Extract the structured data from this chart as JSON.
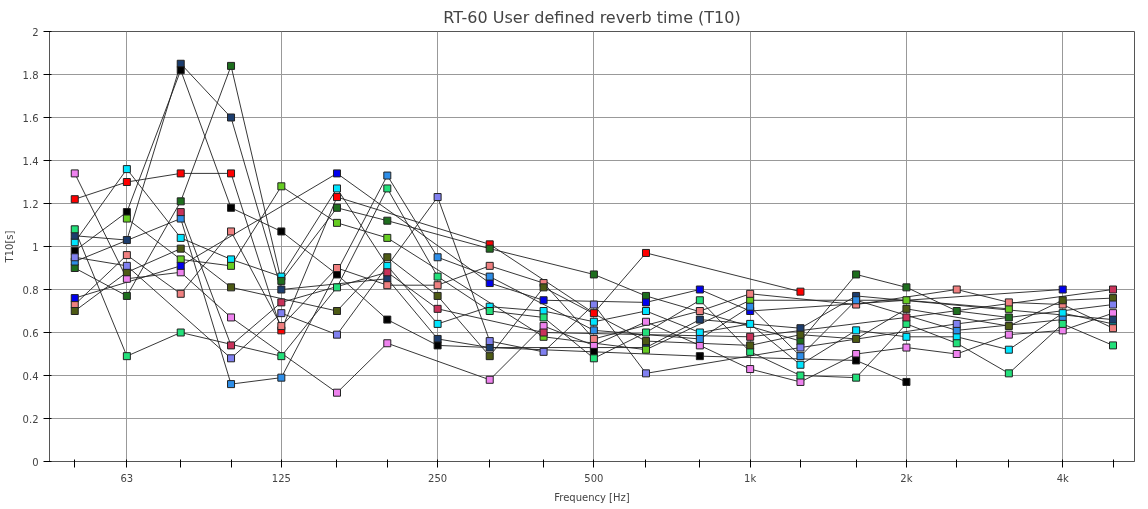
{
  "chart_data": {
    "type": "line",
    "title": "RT-60 User defined reverb time (T10)",
    "xlabel": "Frequency [Hz]",
    "ylabel": "T10[s]",
    "log": "x",
    "marker": "square",
    "line_style": "solid",
    "grid": true,
    "xlim": [
      44.7,
      5500
    ],
    "ylim": [
      0,
      2
    ],
    "xticks": [
      {
        "value": 50,
        "label": null
      },
      {
        "value": 63,
        "label": "63"
      },
      {
        "value": 80,
        "label": null
      },
      {
        "value": 100,
        "label": null
      },
      {
        "value": 125,
        "label": "125"
      },
      {
        "value": 160,
        "label": null
      },
      {
        "value": 200,
        "label": null
      },
      {
        "value": 250,
        "label": "250"
      },
      {
        "value": 315,
        "label": null
      },
      {
        "value": 400,
        "label": null
      },
      {
        "value": 500,
        "label": "500"
      },
      {
        "value": 630,
        "label": null
      },
      {
        "value": 800,
        "label": null
      },
      {
        "value": 1000,
        "label": "1k"
      },
      {
        "value": 1250,
        "label": null
      },
      {
        "value": 1600,
        "label": null
      },
      {
        "value": 2000,
        "label": "2k"
      },
      {
        "value": 2500,
        "label": null
      },
      {
        "value": 3150,
        "label": null
      },
      {
        "value": 4000,
        "label": "4k"
      },
      {
        "value": 5000,
        "label": null
      }
    ],
    "yticks": [
      0,
      0.2,
      0.4,
      0.6,
      0.8,
      1,
      1.2,
      1.4,
      1.6,
      1.8,
      2
    ],
    "series": [
      {
        "color": "#ee82ee",
        "x": [
          50,
          63,
          80,
          100,
          160,
          200,
          315,
          400,
          500,
          630,
          800,
          1000,
          1250,
          1600,
          2000,
          2500,
          3150,
          4000,
          5000
        ],
        "values": [
          1.34,
          0.85,
          0.88,
          0.67,
          0.32,
          0.55,
          0.38,
          0.63,
          0.54,
          0.65,
          0.54,
          0.43,
          0.37,
          0.5,
          0.53,
          0.5,
          0.59,
          0.61,
          0.69
        ]
      },
      {
        "color": "#ff0000",
        "x": [
          50,
          63,
          80,
          100,
          125,
          160,
          315,
          500,
          630,
          1250
        ],
        "values": [
          1.22,
          1.3,
          1.34,
          1.34,
          0.61,
          1.23,
          1.01,
          0.69,
          0.97,
          0.79
        ]
      },
      {
        "color": "#00e5ff",
        "x": [
          50,
          63,
          80,
          100,
          125,
          160,
          200,
          250,
          315,
          400,
          500,
          630,
          800,
          1000,
          1250,
          1600,
          2000,
          2500,
          3150,
          4000,
          5000
        ],
        "values": [
          1.02,
          1.36,
          1.04,
          0.94,
          0.86,
          1.27,
          0.91,
          0.64,
          0.72,
          0.7,
          0.65,
          0.7,
          0.6,
          0.64,
          0.45,
          0.61,
          0.58,
          0.58,
          0.52,
          0.69,
          0.64
        ]
      },
      {
        "color": "#1e6e1e",
        "x": [
          50,
          63,
          80,
          100,
          125,
          160,
          200,
          315,
          500,
          630,
          1250,
          1600,
          2000,
          2500,
          3150
        ],
        "values": [
          0.9,
          0.77,
          1.21,
          1.84,
          0.84,
          1.18,
          1.12,
          0.99,
          0.87,
          0.77,
          0.56,
          0.87,
          0.81,
          0.7,
          0.67
        ]
      },
      {
        "color": "#1c3d6e",
        "x": [
          50,
          63,
          80,
          100,
          125,
          200,
          250,
          315,
          630,
          800,
          1250,
          1600,
          5000
        ],
        "values": [
          1.05,
          1.03,
          1.85,
          1.6,
          0.8,
          0.85,
          0.57,
          0.53,
          0.53,
          0.66,
          0.62,
          0.77,
          0.66
        ]
      },
      {
        "color": "#000000",
        "x": [
          50,
          63,
          80,
          100,
          125,
          160,
          200,
          250,
          500,
          800,
          1600,
          2000
        ],
        "values": [
          0.98,
          1.16,
          1.82,
          1.18,
          1.07,
          0.87,
          0.66,
          0.54,
          0.51,
          0.49,
          0.47,
          0.37
        ]
      },
      {
        "color": "#66cc22",
        "x": [
          63,
          80,
          100,
          125,
          160,
          200,
          400,
          630,
          1000,
          2000,
          3150
        ],
        "values": [
          1.13,
          0.94,
          0.91,
          1.28,
          1.11,
          1.04,
          0.58,
          0.52,
          0.75,
          0.75,
          0.71
        ]
      },
      {
        "color": "#f08080",
        "x": [
          50,
          63,
          80,
          100,
          125,
          160,
          200,
          250,
          315,
          400,
          500,
          800,
          1000,
          1600,
          2500,
          3150,
          4000,
          5000
        ],
        "values": [
          0.73,
          0.96,
          0.78,
          1.07,
          0.63,
          0.9,
          0.82,
          0.82,
          0.91,
          0.83,
          0.57,
          0.7,
          0.78,
          0.73,
          0.8,
          0.74,
          0.73,
          0.62
        ]
      },
      {
        "color": "#0000ee",
        "x": [
          50,
          80,
          160,
          315,
          400,
          630,
          800,
          1000,
          4000
        ],
        "values": [
          0.76,
          0.91,
          1.34,
          0.83,
          0.75,
          0.74,
          0.8,
          0.7,
          0.8
        ]
      },
      {
        "color": "#2e8ee8",
        "x": [
          50,
          80,
          100,
          125,
          200,
          250,
          315,
          500,
          800,
          1000,
          1250,
          1600,
          2500,
          4000
        ],
        "values": [
          0.93,
          1.13,
          0.36,
          0.39,
          1.33,
          0.95,
          0.86,
          0.61,
          0.57,
          0.72,
          0.49,
          0.75,
          0.61,
          0.66
        ]
      },
      {
        "color": "#22e07a",
        "x": [
          50,
          63,
          80,
          125,
          160,
          200,
          250,
          315,
          400,
          500,
          630,
          800,
          1000,
          1250,
          1600,
          2000,
          2500,
          3150,
          4000,
          5000
        ],
        "values": [
          1.08,
          0.49,
          0.6,
          0.49,
          0.81,
          1.27,
          0.86,
          0.7,
          0.67,
          0.48,
          0.6,
          0.75,
          0.51,
          0.4,
          0.39,
          0.64,
          0.55,
          0.41,
          0.64,
          0.54
        ]
      },
      {
        "color": "#4d5a14",
        "x": [
          50,
          63,
          80,
          100,
          160,
          200,
          250,
          315,
          400,
          630,
          1000,
          1250,
          1600,
          2000,
          3150,
          4000,
          5000
        ],
        "values": [
          0.7,
          0.88,
          0.99,
          0.81,
          0.7,
          0.95,
          0.77,
          0.49,
          0.81,
          0.56,
          0.54,
          0.59,
          0.57,
          0.71,
          0.63,
          0.75,
          0.76
        ]
      },
      {
        "color": "#c8325a",
        "x": [
          80,
          100,
          125,
          200,
          250,
          400,
          1000,
          2000,
          5000
        ],
        "values": [
          1.16,
          0.54,
          0.74,
          0.88,
          0.71,
          0.6,
          0.58,
          0.67,
          0.8
        ]
      },
      {
        "color": "#8080f0",
        "x": [
          50,
          63,
          100,
          125,
          160,
          250,
          315,
          400,
          500,
          630,
          1250,
          2500,
          5000
        ],
        "values": [
          0.95,
          0.91,
          0.48,
          0.69,
          0.59,
          1.23,
          0.56,
          0.51,
          0.73,
          0.41,
          0.53,
          0.64,
          0.73
        ]
      }
    ]
  }
}
